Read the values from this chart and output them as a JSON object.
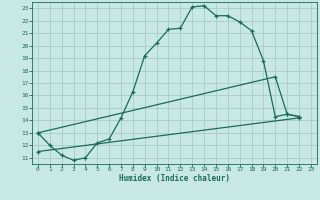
{
  "xlabel": "Humidex (Indice chaleur)",
  "background_color": "#c8e8e4",
  "grid_color": "#a8cccc",
  "line_color": "#1a6b5a",
  "xlim": [
    -0.5,
    23.5
  ],
  "ylim": [
    10.5,
    23.5
  ],
  "xticks": [
    0,
    1,
    2,
    3,
    4,
    5,
    6,
    7,
    8,
    9,
    10,
    11,
    12,
    13,
    14,
    15,
    16,
    17,
    18,
    19,
    20,
    21,
    22,
    23
  ],
  "yticks": [
    11,
    12,
    13,
    14,
    15,
    16,
    17,
    18,
    19,
    20,
    21,
    22,
    23
  ],
  "line1_x": [
    0,
    1,
    2,
    3,
    4,
    5,
    6,
    7,
    8,
    9,
    10,
    11,
    12,
    13,
    14,
    15,
    16,
    17,
    18,
    19,
    20,
    21,
    22
  ],
  "line1_y": [
    13,
    12,
    11.2,
    10.8,
    11.0,
    12.2,
    12.5,
    14.2,
    16.3,
    19.2,
    20.2,
    21.3,
    21.4,
    23.1,
    23.2,
    22.4,
    22.4,
    21.9,
    21.2,
    18.8,
    14.3,
    14.5,
    14.3
  ],
  "line2_x": [
    0,
    20,
    21,
    22
  ],
  "line2_y": [
    13,
    17.5,
    14.5,
    14.3
  ],
  "line3_x": [
    0,
    22
  ],
  "line3_y": [
    11.5,
    14.2
  ]
}
